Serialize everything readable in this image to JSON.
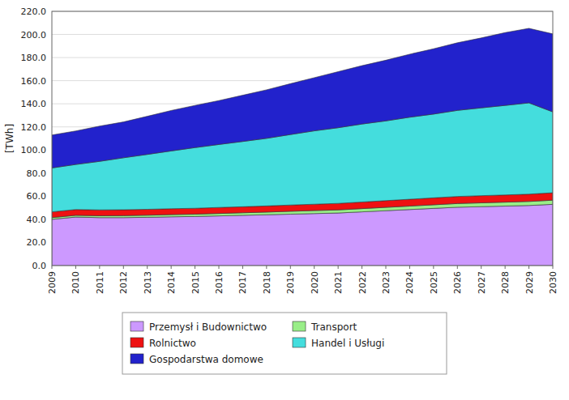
{
  "chart_data": {
    "type": "area",
    "stacked": true,
    "y_label": "[TWh]",
    "x": [
      2009,
      2010,
      2011,
      2012,
      2013,
      2014,
      2015,
      2016,
      2017,
      2018,
      2019,
      2020,
      2021,
      2022,
      2023,
      2024,
      2025,
      2026,
      2027,
      2028,
      2029,
      2030
    ],
    "xlim": [
      2009,
      2030
    ],
    "xticks": [
      2009,
      2010,
      2011,
      2012,
      2013,
      2014,
      2015,
      2016,
      2017,
      2018,
      2019,
      2020,
      2021,
      2022,
      2023,
      2024,
      2025,
      2026,
      2027,
      2028,
      2029,
      2030
    ],
    "ylim": [
      0,
      220
    ],
    "yticks": [
      {
        "value": 0,
        "label": "0.0"
      },
      {
        "value": 20,
        "label": "20.0"
      },
      {
        "value": 40,
        "label": "40.0"
      },
      {
        "value": 60,
        "label": "60.0"
      },
      {
        "value": 80,
        "label": "80.0"
      },
      {
        "value": 100,
        "label": "100.0"
      },
      {
        "value": 120,
        "label": "120.0"
      },
      {
        "value": 140,
        "label": "140.0"
      },
      {
        "value": 160,
        "label": "160.0"
      },
      {
        "value": 180,
        "label": "180.0"
      },
      {
        "value": 200,
        "label": "200.0"
      },
      {
        "value": 220,
        "label": "220.0"
      }
    ],
    "grid": true,
    "legend": "bottom",
    "series": [
      {
        "name": "Przemysł i Budownictwo",
        "color": "#CC99FF",
        "values": [
          40.0,
          42.0,
          41.5,
          41.5,
          41.8,
          42.2,
          42.5,
          43.0,
          43.5,
          44.0,
          44.5,
          45.0,
          45.5,
          46.5,
          47.5,
          48.5,
          49.5,
          50.5,
          51.0,
          51.5,
          52.0,
          53.0
        ]
      },
      {
        "name": "Transport",
        "color": "#99EE88",
        "values": [
          1.5,
          1.5,
          1.6,
          1.7,
          1.8,
          1.9,
          2.0,
          2.1,
          2.2,
          2.3,
          2.5,
          2.6,
          2.7,
          2.8,
          2.9,
          3.0,
          3.1,
          3.2,
          3.3,
          3.4,
          3.5,
          3.6
        ]
      },
      {
        "name": "Rolnictwo",
        "color": "#EE1111",
        "values": [
          5.0,
          5.0,
          5.1,
          5.1,
          5.1,
          5.1,
          5.1,
          5.2,
          5.2,
          5.3,
          5.4,
          5.5,
          5.6,
          5.7,
          5.8,
          5.9,
          6.0,
          6.1,
          6.2,
          6.2,
          6.3,
          6.4
        ]
      },
      {
        "name": "Handel i Usługi",
        "color": "#44DDDD",
        "values": [
          38.0,
          39.0,
          42.0,
          45.0,
          47.5,
          50.0,
          52.5,
          54.5,
          56.5,
          58.5,
          61.0,
          63.5,
          65.5,
          67.5,
          69.0,
          71.0,
          72.5,
          74.5,
          76.0,
          77.5,
          79.0,
          70.0
        ]
      },
      {
        "name": "Gospodarstwa domowe",
        "color": "#2222CC",
        "values": [
          28.5,
          29.0,
          30.5,
          31.0,
          33.0,
          35.0,
          36.5,
          38.0,
          40.0,
          42.0,
          44.0,
          46.0,
          48.5,
          50.5,
          52.5,
          54.5,
          56.5,
          58.5,
          60.5,
          63.0,
          64.5,
          67.5
        ]
      }
    ]
  }
}
